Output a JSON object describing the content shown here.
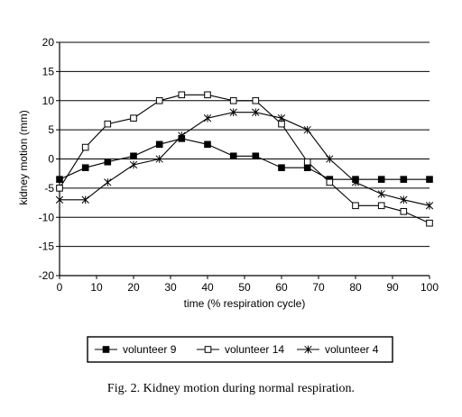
{
  "chart_data": {
    "type": "line",
    "xlabel": "time (% respiration cycle)",
    "ylabel": "kidney motion (mm)",
    "xlim": [
      0,
      100
    ],
    "ylim": [
      -20,
      20
    ],
    "x_ticks": [
      "0",
      "10",
      "20",
      "30",
      "40",
      "50",
      "60",
      "70",
      "80",
      "90",
      "100"
    ],
    "y_ticks": [
      "20",
      "15",
      "10",
      "5",
      "0",
      "-5",
      "-10",
      "-15",
      "-20"
    ],
    "grid": "horizontal",
    "legend_position": "bottom",
    "series": [
      {
        "name": "volunteer 9",
        "marker": "filled-square",
        "x": [
          0,
          7,
          13,
          20,
          27,
          33,
          40,
          47,
          53,
          60,
          67,
          73,
          80,
          87,
          93,
          100
        ],
        "y": [
          -3.5,
          -1.5,
          -0.5,
          0.5,
          2.5,
          3.5,
          2.5,
          0.5,
          0.5,
          -1.5,
          -1.5,
          -3.5,
          -3.5,
          -3.5,
          -3.5,
          -3.5
        ]
      },
      {
        "name": "volunteer 14",
        "marker": "open-square",
        "x": [
          0,
          7,
          13,
          20,
          27,
          33,
          40,
          47,
          53,
          60,
          67,
          73,
          80,
          87,
          93,
          100
        ],
        "y": [
          -5,
          2,
          6,
          7,
          10,
          11,
          11,
          10,
          10,
          6,
          -0.5,
          -4,
          -8,
          -8,
          -9,
          -11
        ]
      },
      {
        "name": "volunteer 4",
        "marker": "star",
        "x": [
          0,
          7,
          13,
          20,
          27,
          33,
          40,
          47,
          53,
          60,
          67,
          73,
          80,
          87,
          93,
          100
        ],
        "y": [
          -7,
          -7,
          -4,
          -1,
          0,
          4,
          7,
          8,
          8,
          7,
          5,
          0,
          -4,
          -6,
          -7,
          -8
        ]
      }
    ]
  },
  "caption": "Fig. 2. Kidney motion during normal respiration."
}
